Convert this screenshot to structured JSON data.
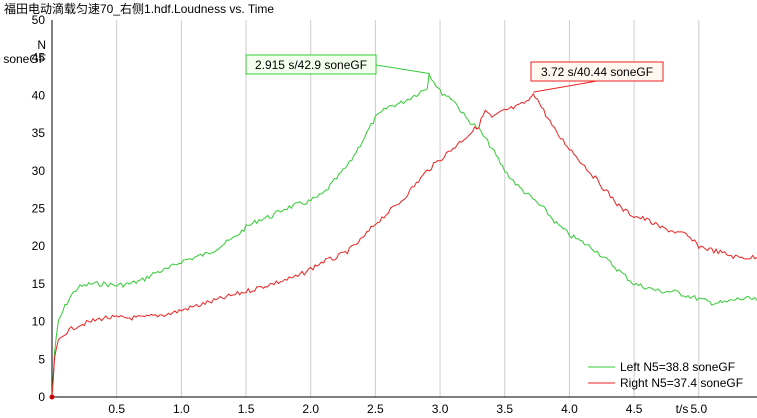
{
  "chart_data": {
    "type": "line",
    "title": "福田电动滴载匀速70_右侧1.hdf.Loudness vs. Time",
    "xlabel": "t/s",
    "ylabel": "N",
    "yunit": "soneGF",
    "xlim": [
      0,
      5.45
    ],
    "ylim": [
      0,
      50
    ],
    "x_ticks": [
      "0.5",
      "1.0",
      "1.5",
      "2.0",
      "2.5",
      "3.0",
      "3.5",
      "4.0",
      "4.5",
      "5.0"
    ],
    "y_ticks": [
      "0",
      "5",
      "10",
      "15",
      "20",
      "25",
      "30",
      "35",
      "40",
      "45",
      "50"
    ],
    "grid": "vertical",
    "legend_position": "bottom-right",
    "series": [
      {
        "name": "Left N5=38.8 soneGF",
        "color": "#33cc33",
        "x": [
          0,
          0.02,
          0.05,
          0.1,
          0.15,
          0.2,
          0.3,
          0.4,
          0.5,
          0.6,
          0.7,
          0.8,
          0.9,
          1.0,
          1.1,
          1.2,
          1.3,
          1.4,
          1.5,
          1.6,
          1.7,
          1.8,
          1.9,
          2.0,
          2.1,
          2.2,
          2.3,
          2.4,
          2.5,
          2.6,
          2.7,
          2.8,
          2.9,
          2.915,
          3.0,
          3.1,
          3.2,
          3.3,
          3.4,
          3.5,
          3.6,
          3.7,
          3.8,
          3.9,
          4.0,
          4.1,
          4.2,
          4.3,
          4.4,
          4.5,
          4.6,
          4.7,
          4.8,
          4.9,
          5.0,
          5.1,
          5.2,
          5.3,
          5.4,
          5.45
        ],
        "y": [
          0,
          6,
          10,
          12,
          13.5,
          14.5,
          15,
          15,
          14.8,
          15,
          15.5,
          16.5,
          17,
          18,
          18.5,
          19,
          20,
          21,
          22.5,
          23.5,
          24,
          25,
          25.5,
          26,
          27,
          29,
          31,
          34,
          37,
          38.5,
          39,
          40,
          41,
          42.9,
          40.5,
          39.5,
          37,
          35.5,
          33,
          30,
          28,
          26.5,
          25,
          23,
          21.5,
          20.5,
          19.5,
          18,
          16.5,
          15,
          14.5,
          14,
          14,
          13.5,
          13,
          12.5,
          12.5,
          13,
          13,
          12.8
        ]
      },
      {
        "name": "Right N5=37.4 soneGF",
        "color": "#ee2222",
        "x": [
          0,
          0.02,
          0.05,
          0.1,
          0.15,
          0.2,
          0.3,
          0.4,
          0.5,
          0.6,
          0.7,
          0.8,
          0.9,
          1.0,
          1.1,
          1.2,
          1.3,
          1.4,
          1.5,
          1.6,
          1.7,
          1.8,
          1.9,
          2.0,
          2.1,
          2.2,
          2.3,
          2.4,
          2.5,
          2.6,
          2.7,
          2.8,
          2.9,
          3.0,
          3.1,
          3.2,
          3.3,
          3.35,
          3.4,
          3.5,
          3.6,
          3.7,
          3.72,
          3.8,
          3.9,
          4.0,
          4.1,
          4.2,
          4.3,
          4.4,
          4.5,
          4.6,
          4.7,
          4.8,
          4.9,
          5.0,
          5.1,
          5.2,
          5.3,
          5.4,
          5.45
        ],
        "y": [
          0,
          5,
          7.5,
          8.5,
          9,
          9.5,
          10,
          10.5,
          10.5,
          10.5,
          10.5,
          10.8,
          11,
          11.5,
          12,
          12.5,
          13,
          13.5,
          14,
          14.5,
          15,
          15.5,
          16,
          17,
          18,
          18.5,
          19.5,
          21,
          23,
          24.5,
          26,
          28,
          30,
          31.5,
          33,
          34.5,
          36,
          38,
          37,
          38,
          38.5,
          39.5,
          40.44,
          38,
          35,
          33,
          31,
          29,
          27,
          25,
          24,
          23.5,
          22.5,
          22,
          21.5,
          20,
          19.5,
          19,
          18.5,
          18.5,
          18.5
        ]
      }
    ],
    "annotations": [
      {
        "text": "2.915 s/42.9 soneGF",
        "x": 2.915,
        "y": 42.9,
        "series": 0
      },
      {
        "text": "3.72 s/40.44 soneGF",
        "x": 3.72,
        "y": 40.44,
        "series": 1
      }
    ]
  }
}
